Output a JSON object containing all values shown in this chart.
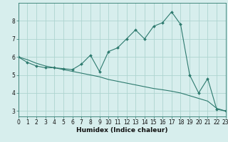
{
  "xlabel": "Humidex (Indice chaleur)",
  "bg_color": "#d7eeed",
  "line_color": "#2d7a6e",
  "grid_color": "#aed4d0",
  "x_values": [
    0,
    1,
    2,
    3,
    4,
    5,
    6,
    7,
    8,
    9,
    10,
    11,
    12,
    13,
    14,
    15,
    16,
    17,
    18,
    19,
    20,
    21,
    22,
    23
  ],
  "curve1": [
    6.0,
    5.7,
    5.5,
    5.4,
    5.4,
    5.35,
    5.3,
    5.6,
    6.1,
    5.2,
    6.3,
    6.5,
    7.0,
    7.5,
    7.0,
    7.7,
    7.9,
    8.5,
    7.8,
    5.0,
    4.0,
    4.8,
    3.1,
    3.0
  ],
  "curve2": [
    6.0,
    5.85,
    5.65,
    5.5,
    5.4,
    5.3,
    5.2,
    5.1,
    5.0,
    4.9,
    4.75,
    4.65,
    4.55,
    4.45,
    4.35,
    4.25,
    4.18,
    4.1,
    4.0,
    3.85,
    3.7,
    3.55,
    3.15,
    3.0
  ],
  "xlim": [
    0,
    23
  ],
  "ylim": [
    2.7,
    9.0
  ],
  "yticks": [
    3,
    4,
    5,
    6,
    7,
    8
  ],
  "xticks": [
    0,
    1,
    2,
    3,
    4,
    5,
    6,
    7,
    8,
    9,
    10,
    11,
    12,
    13,
    14,
    15,
    16,
    17,
    18,
    19,
    20,
    21,
    22,
    23
  ],
  "tick_fontsize": 5.5,
  "xlabel_fontsize": 6.5
}
